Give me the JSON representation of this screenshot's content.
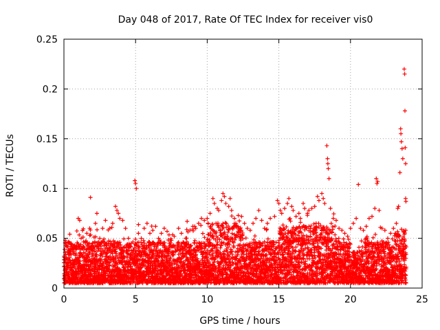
{
  "chart_data": {
    "type": "scatter",
    "title": "Day 048 of 2017, Rate Of TEC Index for receiver vis0",
    "xlabel": "GPS time / hours",
    "ylabel": "ROTI / TECUs",
    "xlim": [
      0,
      25
    ],
    "ylim": [
      0,
      0.25
    ],
    "xticks": [
      0,
      5,
      10,
      15,
      20,
      25
    ],
    "yticks": [
      0,
      0.05,
      0.1,
      0.15,
      0.2,
      0.25
    ],
    "xtick_labels": [
      "0",
      "5",
      "10",
      "15",
      "20",
      "25"
    ],
    "ytick_labels": [
      "0",
      "0.05",
      "0.1",
      "0.15",
      "0.2",
      "0.25"
    ],
    "grid": true,
    "marker": "+",
    "color": "#ff0000",
    "series": [
      {
        "name": "ROTI",
        "points": [
          [
            0.1,
            0.048
          ],
          [
            0.15,
            0.045
          ],
          [
            0.25,
            0.02
          ],
          [
            0.3,
            0.03
          ],
          [
            0.5,
            0.025
          ],
          [
            0.7,
            0.035
          ],
          [
            0.9,
            0.04
          ],
          [
            1.0,
            0.07
          ],
          [
            1.1,
            0.068
          ],
          [
            1.2,
            0.05
          ],
          [
            1.4,
            0.04
          ],
          [
            1.6,
            0.055
          ],
          [
            1.8,
            0.06
          ],
          [
            1.85,
            0.091
          ],
          [
            2.0,
            0.045
          ],
          [
            2.2,
            0.065
          ],
          [
            2.3,
            0.075
          ],
          [
            2.5,
            0.05
          ],
          [
            2.7,
            0.06
          ],
          [
            2.9,
            0.068
          ],
          [
            3.0,
            0.04
          ],
          [
            3.2,
            0.06
          ],
          [
            3.4,
            0.065
          ],
          [
            3.6,
            0.082
          ],
          [
            3.7,
            0.078
          ],
          [
            3.8,
            0.075
          ],
          [
            3.9,
            0.07
          ],
          [
            4.1,
            0.068
          ],
          [
            4.3,
            0.06
          ],
          [
            4.5,
            0.05
          ],
          [
            4.7,
            0.045
          ],
          [
            4.95,
            0.108
          ],
          [
            5.0,
            0.105
          ],
          [
            5.05,
            0.1
          ],
          [
            5.2,
            0.055
          ],
          [
            5.4,
            0.05
          ],
          [
            5.6,
            0.06
          ],
          [
            5.8,
            0.065
          ],
          [
            6.0,
            0.055
          ],
          [
            6.2,
            0.058
          ],
          [
            6.4,
            0.062
          ],
          [
            6.6,
            0.05
          ],
          [
            6.8,
            0.055
          ],
          [
            7.0,
            0.06
          ],
          [
            7.2,
            0.057
          ],
          [
            7.5,
            0.048
          ],
          [
            7.7,
            0.052
          ],
          [
            8.0,
            0.06
          ],
          [
            8.2,
            0.055
          ],
          [
            8.5,
            0.05
          ],
          [
            8.6,
            0.067
          ],
          [
            8.8,
            0.058
          ],
          [
            9.0,
            0.062
          ],
          [
            9.2,
            0.06
          ],
          [
            9.4,
            0.065
          ],
          [
            9.6,
            0.07
          ],
          [
            9.8,
            0.068
          ],
          [
            10.0,
            0.07
          ],
          [
            10.2,
            0.075
          ],
          [
            10.4,
            0.09
          ],
          [
            10.5,
            0.085
          ],
          [
            10.7,
            0.08
          ],
          [
            10.8,
            0.078
          ],
          [
            11.0,
            0.088
          ],
          [
            11.1,
            0.095
          ],
          [
            11.2,
            0.092
          ],
          [
            11.3,
            0.085
          ],
          [
            11.5,
            0.082
          ],
          [
            11.6,
            0.09
          ],
          [
            11.7,
            0.078
          ],
          [
            11.9,
            0.07
          ],
          [
            12.0,
            0.065
          ],
          [
            12.2,
            0.06
          ],
          [
            12.4,
            0.072
          ],
          [
            12.6,
            0.065
          ],
          [
            12.8,
            0.06
          ],
          [
            13.0,
            0.058
          ],
          [
            13.2,
            0.065
          ],
          [
            13.4,
            0.07
          ],
          [
            13.6,
            0.078
          ],
          [
            13.8,
            0.068
          ],
          [
            14.0,
            0.06
          ],
          [
            14.2,
            0.065
          ],
          [
            14.4,
            0.07
          ],
          [
            14.7,
            0.072
          ],
          [
            14.9,
            0.088
          ],
          [
            15.0,
            0.085
          ],
          [
            15.1,
            0.078
          ],
          [
            15.2,
            0.075
          ],
          [
            15.4,
            0.08
          ],
          [
            15.6,
            0.085
          ],
          [
            15.7,
            0.09
          ],
          [
            15.9,
            0.082
          ],
          [
            16.0,
            0.078
          ],
          [
            16.2,
            0.072
          ],
          [
            16.4,
            0.075
          ],
          [
            16.5,
            0.07
          ],
          [
            16.7,
            0.085
          ],
          [
            16.8,
            0.08
          ],
          [
            17.0,
            0.075
          ],
          [
            17.1,
            0.078
          ],
          [
            17.3,
            0.08
          ],
          [
            17.5,
            0.082
          ],
          [
            17.7,
            0.092
          ],
          [
            17.8,
            0.088
          ],
          [
            18.0,
            0.095
          ],
          [
            18.1,
            0.09
          ],
          [
            18.2,
            0.085
          ],
          [
            18.35,
            0.143
          ],
          [
            18.4,
            0.13
          ],
          [
            18.42,
            0.125
          ],
          [
            18.45,
            0.12
          ],
          [
            18.5,
            0.11
          ],
          [
            18.6,
            0.08
          ],
          [
            18.8,
            0.07
          ],
          [
            19.0,
            0.068
          ],
          [
            19.2,
            0.06
          ],
          [
            19.4,
            0.058
          ],
          [
            19.6,
            0.055
          ],
          [
            19.8,
            0.052
          ],
          [
            20.0,
            0.06
          ],
          [
            20.2,
            0.065
          ],
          [
            20.4,
            0.07
          ],
          [
            20.55,
            0.104
          ],
          [
            20.7,
            0.06
          ],
          [
            20.9,
            0.058
          ],
          [
            21.1,
            0.062
          ],
          [
            21.3,
            0.07
          ],
          [
            21.5,
            0.072
          ],
          [
            21.7,
            0.08
          ],
          [
            21.8,
            0.11
          ],
          [
            21.85,
            0.105
          ],
          [
            21.9,
            0.107
          ],
          [
            22.0,
            0.078
          ],
          [
            22.2,
            0.06
          ],
          [
            22.4,
            0.058
          ],
          [
            22.6,
            0.05
          ],
          [
            22.8,
            0.055
          ],
          [
            23.0,
            0.06
          ],
          [
            23.2,
            0.065
          ],
          [
            23.3,
            0.08
          ],
          [
            23.35,
            0.082
          ],
          [
            23.45,
            0.116
          ],
          [
            23.5,
            0.16
          ],
          [
            23.52,
            0.155
          ],
          [
            23.55,
            0.147
          ],
          [
            23.6,
            0.14
          ],
          [
            23.65,
            0.13
          ],
          [
            23.75,
            0.22
          ],
          [
            23.78,
            0.215
          ],
          [
            23.8,
            0.178
          ],
          [
            23.82,
            0.141
          ],
          [
            23.85,
            0.125
          ],
          [
            23.85,
            0.09
          ],
          [
            23.87,
            0.087
          ]
        ]
      }
    ],
    "dense_band": {
      "x_range": [
        0,
        23.9
      ],
      "y_floor": 0.005,
      "y_typical": [
        0.01,
        0.045
      ]
    }
  }
}
